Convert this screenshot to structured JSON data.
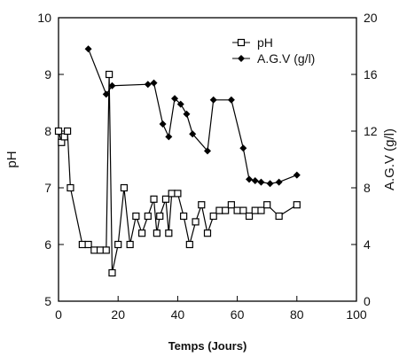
{
  "chart_data": {
    "type": "line",
    "xlabel": "Temps (Jours)",
    "ylabel_left": "pH",
    "ylabel_right": "A.G.V (g/l)",
    "xlim": [
      0,
      100
    ],
    "ylim_left": [
      5,
      10
    ],
    "ylim_right": [
      0,
      20
    ],
    "x_ticks": [
      0,
      20,
      40,
      60,
      80,
      100
    ],
    "y_left_ticks": [
      5,
      6,
      7,
      8,
      9,
      10
    ],
    "y_right_ticks": [
      0,
      4,
      8,
      12,
      16,
      20
    ],
    "grid": false,
    "legend_position": "top-right",
    "series": [
      {
        "name": "pH",
        "axis": "left",
        "marker": "open-square",
        "x": [
          0,
          1,
          2,
          3,
          4,
          8,
          10,
          12,
          14,
          16,
          17,
          18,
          20,
          22,
          24,
          26,
          28,
          30,
          32,
          33,
          34,
          36,
          37,
          38,
          40,
          42,
          44,
          46,
          48,
          50,
          52,
          54,
          56,
          58,
          60,
          62,
          64,
          66,
          68,
          70,
          74,
          80
        ],
        "y": [
          8.0,
          7.8,
          7.9,
          8.0,
          7.0,
          6.0,
          6.0,
          5.9,
          5.9,
          5.9,
          9.0,
          5.5,
          6.0,
          7.0,
          6.0,
          6.5,
          6.2,
          6.5,
          6.8,
          6.2,
          6.5,
          6.8,
          6.2,
          6.9,
          6.9,
          6.5,
          6.0,
          6.4,
          6.7,
          6.2,
          6.5,
          6.6,
          6.6,
          6.7,
          6.6,
          6.6,
          6.5,
          6.6,
          6.6,
          6.7,
          6.5,
          6.7
        ]
      },
      {
        "name": "A.G.V (g/l)",
        "axis": "right",
        "marker": "filled-diamond",
        "x": [
          10,
          16,
          18,
          30,
          32,
          35,
          37,
          39,
          41,
          43,
          45,
          50,
          52,
          58,
          62,
          64,
          66,
          68,
          71,
          74,
          80
        ],
        "y": [
          17.8,
          14.6,
          15.2,
          15.3,
          15.4,
          12.5,
          11.6,
          14.3,
          13.9,
          13.2,
          11.8,
          10.6,
          14.2,
          14.2,
          10.8,
          8.6,
          8.5,
          8.4,
          8.3,
          8.4,
          8.9
        ]
      }
    ]
  }
}
